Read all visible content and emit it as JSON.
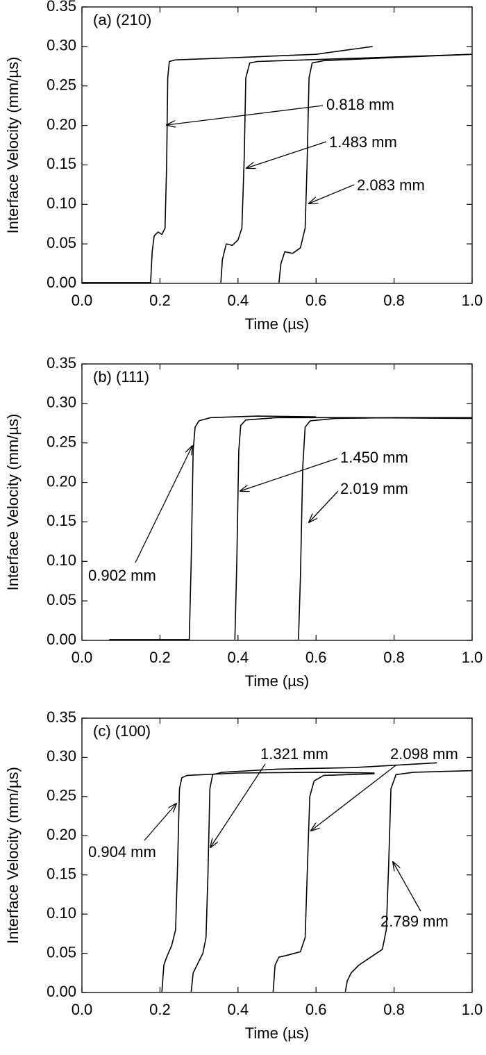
{
  "chart_data": [
    {
      "type": "line",
      "label": "(a) (210)",
      "xlabel": "Time (µs)",
      "ylabel": "Interface Velocity (mm/µs)",
      "xlim": [
        0,
        1
      ],
      "ylim": [
        0,
        0.35
      ],
      "xticks": [
        {
          "value": 0,
          "label": "0.0"
        },
        0.2,
        0.4,
        0.6,
        0.8,
        {
          "value": 1,
          "label": "1.0"
        }
      ],
      "yticks": [
        {
          "value": 0,
          "label": "0.00"
        },
        0.05,
        {
          "value": 0.1,
          "label": "0.10"
        },
        0.15,
        {
          "value": 0.2,
          "label": "0.20"
        },
        0.25,
        {
          "value": 0.3,
          "label": "0.30"
        },
        0.35
      ],
      "series": [
        {
          "name": "0.818 mm",
          "color": "#000000",
          "x": [
            0,
            0.176,
            0.18,
            0.185,
            0.195,
            0.205,
            0.213,
            0.217,
            0.22,
            0.224,
            0.24,
            0.4,
            0.6,
            0.745
          ],
          "values": [
            0.001,
            0.001,
            0.04,
            0.06,
            0.065,
            0.062,
            0.07,
            0.15,
            0.26,
            0.281,
            0.283,
            0.286,
            0.29,
            0.3
          ]
        },
        {
          "name": "1.483 mm",
          "color": "#000000",
          "x": [
            0.356,
            0.36,
            0.37,
            0.385,
            0.4,
            0.41,
            0.416,
            0.42,
            0.43,
            0.45,
            0.7,
            1
          ],
          "values": [
            0.001,
            0.03,
            0.05,
            0.048,
            0.055,
            0.07,
            0.16,
            0.26,
            0.279,
            0.281,
            0.285,
            0.29
          ]
        },
        {
          "name": "2.083 mm",
          "color": "#000000",
          "x": [
            0.505,
            0.51,
            0.52,
            0.54,
            0.56,
            0.572,
            0.577,
            0.582,
            0.59,
            0.62,
            0.8,
            1
          ],
          "values": [
            0.001,
            0.025,
            0.04,
            0.038,
            0.045,
            0.07,
            0.15,
            0.26,
            0.279,
            0.282,
            0.286,
            0.29
          ]
        }
      ],
      "annotations": [
        "0.818 mm",
        "1.483 mm",
        "2.083 mm"
      ]
    },
    {
      "type": "line",
      "label": "(b) (111)",
      "xlabel": "Time (µs)",
      "ylabel": "Interface Velocity (mm/µs)",
      "xlim": [
        0,
        1
      ],
      "ylim": [
        0,
        0.35
      ],
      "xticks": [
        {
          "value": 0,
          "label": "0.0"
        },
        0.2,
        0.4,
        0.6,
        0.8,
        {
          "value": 1,
          "label": "1.0"
        }
      ],
      "yticks": [
        {
          "value": 0,
          "label": "0.00"
        },
        0.05,
        {
          "value": 0.1,
          "label": "0.10"
        },
        0.15,
        {
          "value": 0.2,
          "label": "0.20"
        },
        0.25,
        {
          "value": 0.3,
          "label": "0.30"
        },
        0.35
      ],
      "series": [
        {
          "name": "0.902 mm",
          "color": "#000000",
          "x": [
            0.07,
            0.275,
            0.28,
            0.285,
            0.29,
            0.3,
            0.33,
            0.45,
            0.6
          ],
          "values": [
            0.001,
            0.001,
            0.1,
            0.24,
            0.27,
            0.278,
            0.282,
            0.284,
            0.283
          ]
        },
        {
          "name": "1.450 mm",
          "color": "#000000",
          "x": [
            0.392,
            0.397,
            0.402,
            0.407,
            0.42,
            0.5,
            0.7,
            1
          ],
          "values": [
            0.001,
            0.1,
            0.24,
            0.272,
            0.279,
            0.282,
            0.282,
            0.281
          ]
        },
        {
          "name": "2.019 mm",
          "color": "#000000",
          "x": [
            0.555,
            0.56,
            0.566,
            0.572,
            0.585,
            0.65,
            0.8,
            1
          ],
          "values": [
            0.001,
            0.08,
            0.22,
            0.27,
            0.278,
            0.281,
            0.282,
            0.282
          ]
        }
      ],
      "annotations": [
        "1.450 mm",
        "2.019 mm",
        "0.902 mm"
      ]
    },
    {
      "type": "line",
      "label": "(c) (100)",
      "xlabel": "Time (µs)",
      "ylabel": "Interface Velocity (mm/µs)",
      "xlim": [
        0,
        1
      ],
      "ylim": [
        0,
        0.35
      ],
      "xticks": [
        {
          "value": 0,
          "label": "0.0"
        },
        0.2,
        0.4,
        0.6,
        0.8,
        {
          "value": 1,
          "label": "1.0"
        }
      ],
      "yticks": [
        {
          "value": 0,
          "label": "0.00"
        },
        0.05,
        {
          "value": 0.1,
          "label": "0.10"
        },
        0.15,
        {
          "value": 0.2,
          "label": "0.20"
        },
        0.25,
        {
          "value": 0.3,
          "label": "0.30"
        },
        0.35
      ],
      "series": [
        {
          "name": "0.904 mm",
          "color": "#000000",
          "x": [
            0.205,
            0.21,
            0.217,
            0.23,
            0.24,
            0.245,
            0.25,
            0.256,
            0.27,
            0.4,
            0.6,
            0.75
          ],
          "values": [
            0.001,
            0.035,
            0.045,
            0.06,
            0.08,
            0.16,
            0.26,
            0.274,
            0.277,
            0.28,
            0.281,
            0.28
          ]
        },
        {
          "name": "1.321 mm",
          "color": "#000000",
          "x": [
            0.28,
            0.285,
            0.295,
            0.31,
            0.318,
            0.323,
            0.328,
            0.335,
            0.36,
            0.5,
            0.7,
            0.91
          ],
          "values": [
            0.001,
            0.025,
            0.035,
            0.05,
            0.07,
            0.15,
            0.26,
            0.278,
            0.281,
            0.285,
            0.287,
            0.293
          ]
        },
        {
          "name": "2.098 mm",
          "color": "#000000",
          "x": [
            0.49,
            0.495,
            0.505,
            0.53,
            0.56,
            0.572,
            0.578,
            0.584,
            0.595,
            0.62,
            0.75
          ],
          "values": [
            0.001,
            0.035,
            0.045,
            0.048,
            0.052,
            0.07,
            0.16,
            0.25,
            0.27,
            0.277,
            0.279
          ]
        },
        {
          "name": "2.789 mm",
          "color": "#000000",
          "x": [
            0.675,
            0.68,
            0.69,
            0.71,
            0.74,
            0.77,
            0.78,
            0.786,
            0.792,
            0.805,
            0.85,
            1
          ],
          "values": [
            0.001,
            0.015,
            0.025,
            0.035,
            0.045,
            0.055,
            0.08,
            0.16,
            0.26,
            0.278,
            0.281,
            0.283
          ]
        }
      ],
      "annotations": [
        "1.321 mm",
        "2.098 mm",
        "0.904 mm",
        "2.789 mm"
      ]
    }
  ]
}
